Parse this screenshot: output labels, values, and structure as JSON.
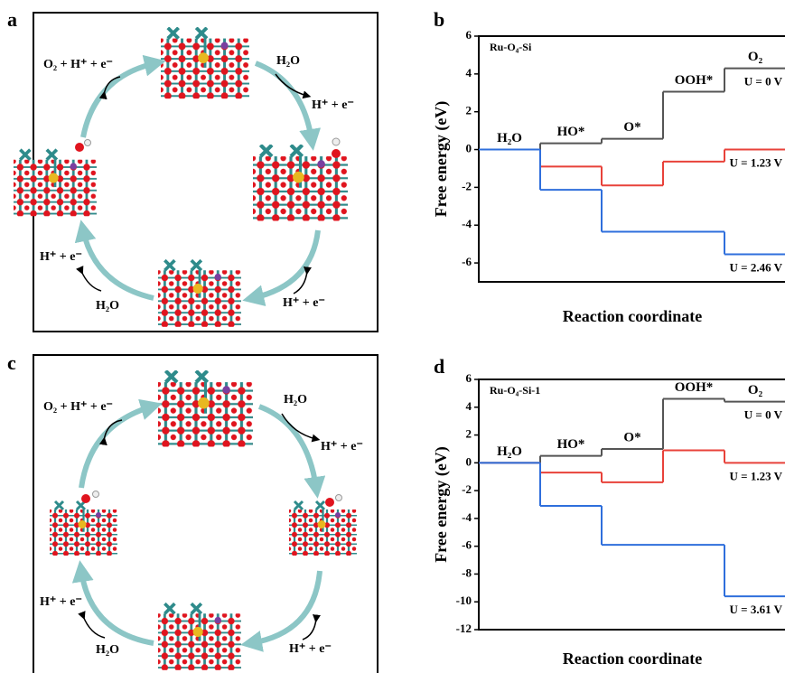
{
  "diagrams": [
    {
      "panel_label": "a",
      "labels": [
        "O₂ + H⁺ + e⁻",
        "H₂O",
        "H⁺ + e⁻",
        "H⁺ + e⁻",
        "H₂O",
        "H⁺ + e⁻"
      ]
    },
    {
      "panel_label": "c",
      "labels": [
        "O₂ + H⁺ + e⁻",
        "H₂O",
        "H⁺ + e⁻",
        "H⁺ + e⁻",
        "H₂O",
        "H⁺ + e⁻"
      ]
    }
  ],
  "chart_data": [
    {
      "type": "step",
      "panel_label": "b",
      "subtitle": "Ru-O₄-Si",
      "x_label": "Reaction coordinate",
      "y_label": "Free energy (eV)",
      "categories": [
        "H₂O",
        "HO*",
        "O*",
        "OOH*",
        "O₂"
      ],
      "ylim": [
        -7,
        6
      ],
      "yticks": [
        -6,
        -4,
        -2,
        0,
        2,
        4,
        6
      ],
      "series": [
        {
          "name": "U = 0 V",
          "color": "#555555",
          "values": [
            0,
            0.33,
            0.57,
            3.06,
            4.3
          ]
        },
        {
          "name": "U = 1.23 V",
          "color": "#e8423a",
          "values": [
            0,
            -0.9,
            -1.9,
            -0.64,
            0
          ]
        },
        {
          "name": "U = 2.46 V",
          "color": "#2f6fdc",
          "values": [
            0,
            -2.13,
            -4.35,
            -4.35,
            -5.54
          ]
        }
      ]
    },
    {
      "type": "step",
      "panel_label": "d",
      "subtitle": "Ru-O₄-Si-1",
      "x_label": "Reaction coordinate",
      "y_label": "Free energy (eV)",
      "categories": [
        "H₂O",
        "HO*",
        "O*",
        "OOH*",
        "O₂"
      ],
      "ylim": [
        -12,
        6
      ],
      "yticks": [
        -12,
        -10,
        -8,
        -6,
        -4,
        -2,
        0,
        2,
        4,
        6
      ],
      "series": [
        {
          "name": "U = 0 V",
          "color": "#555555",
          "values": [
            0,
            0.5,
            1.0,
            4.6,
            4.4
          ]
        },
        {
          "name": "U = 1.23 V",
          "color": "#e8423a",
          "values": [
            0,
            -0.7,
            -1.4,
            0.9,
            0
          ]
        },
        {
          "name": "U = 3.61 V",
          "color": "#2f6fdc",
          "values": [
            0,
            -3.1,
            -5.9,
            -5.9,
            -9.6
          ]
        }
      ]
    }
  ]
}
